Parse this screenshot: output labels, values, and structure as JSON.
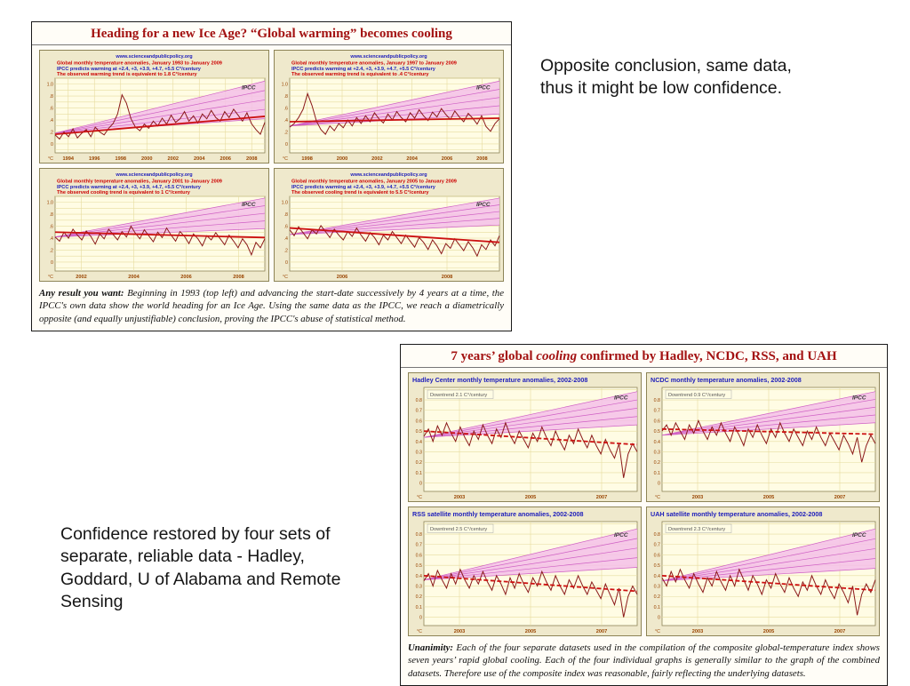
{
  "notes": {
    "right": "Opposite conclusion, same data, thus it might be low confidence.",
    "left": "Confidence restored by four sets of separate, reliable data - Hadley, Goddard, U of Alabama and Remote Sensing"
  },
  "panel1": {
    "title": "Heading for a new Ice Age? “Global warming” becomes cooling",
    "caption_lead": "Any result you want:",
    "caption_body": "Beginning in 1993 (top left) and advancing the start-date successively by 4 years at a time, the IPCC's own data show the world heading for an Ice Age. Using the same data as the IPCC, we reach a diametrically opposite (and equally unjustifiable) conclusion, proving the IPCC's abuse of statistical method."
  },
  "panel2": {
    "title_pre": "7 years’ global ",
    "title_italic": "cooling",
    "title_post": " confirmed by Hadley, NCDC, RSS, and UAH",
    "caption_lead": "Unanimity:",
    "caption_body": "Each of the four separate datasets used in the compilation of the composite global-temperature index shows seven years’ rapid global cooling. Each of the four individual graphs is generally similar to the graph of the combined datasets. Therefore use of the composite index was reasonable, fairly reflecting the underlying datasets."
  },
  "colors": {
    "title_red": "#a31212",
    "header_red": "#cc0000",
    "header_blue": "#2020bb",
    "series": "#8b1a1a",
    "trend": "#cc1111",
    "fan_fill": "#f5bfe9",
    "fan_line": "#cf5fc4",
    "plot_bg": "#fffce4",
    "chart_bg": "#efe9cc",
    "grid": "#e6dc9e",
    "tick_text": "#994400",
    "border": "#8d8457"
  },
  "chart_data": [
    {
      "type": "line",
      "watermark": "www.scienceandpublicpolicy.org",
      "header": [
        {
          "text": "Global monthly temperature anomalies, January 1993 to January 2009",
          "c": "#cc0000"
        },
        {
          "text": "IPCC predicts warming at +2.4, +3, +3.9, +4.7, +5.5 C°/century",
          "c": "#2020bb"
        },
        {
          "text": "The observed warming trend is equivalent to 1.8 C°/century",
          "c": "#cc0000"
        }
      ],
      "ipcc_label": "IPCC",
      "x_ticks": [
        {
          "label": "1994",
          "f": 0.0625
        },
        {
          "label": "1996",
          "f": 0.1875
        },
        {
          "label": "1998",
          "f": 0.3125
        },
        {
          "label": "2000",
          "f": 0.4375
        },
        {
          "label": "2002",
          "f": 0.5625
        },
        {
          "label": "2004",
          "f": 0.6875
        },
        {
          "label": "2006",
          "f": 0.8125
        },
        {
          "label": "2008",
          "f": 0.9375
        }
      ],
      "y_ticks": [
        {
          "l": "1.0",
          "v": 1.0
        },
        {
          "l": ".8",
          "v": 0.8
        },
        {
          "l": ".6",
          "v": 0.6
        },
        {
          "l": ".4",
          "v": 0.4
        },
        {
          "l": ".2",
          "v": 0.2
        },
        {
          "l": "0",
          "v": 0.0
        }
      ],
      "y_unit": "°C",
      "ymin": -0.15,
      "ymax": 1.1,
      "values": [
        0.15,
        0.08,
        0.2,
        0.12,
        0.25,
        0.1,
        0.18,
        0.24,
        0.12,
        0.28,
        0.2,
        0.15,
        0.26,
        0.34,
        0.5,
        0.82,
        0.68,
        0.42,
        0.28,
        0.22,
        0.33,
        0.26,
        0.38,
        0.3,
        0.43,
        0.33,
        0.48,
        0.36,
        0.42,
        0.54,
        0.38,
        0.47,
        0.35,
        0.5,
        0.42,
        0.56,
        0.44,
        0.38,
        0.54,
        0.44,
        0.58,
        0.48,
        0.38,
        0.52,
        0.34,
        0.24,
        0.16,
        0.36
      ],
      "trend": {
        "y0": 0.16,
        "y1": 0.46,
        "dashed": false
      },
      "fan": {
        "apex": 0.18,
        "top": 1.05,
        "bot": 0.42
      }
    },
    {
      "type": "line",
      "watermark": "www.scienceandpublicpolicy.org",
      "header": [
        {
          "text": "Global monthly temperature anomalies, January 1997 to January 2009",
          "c": "#cc0000"
        },
        {
          "text": "IPCC predicts warming at +2.4, +3, +3.9, +4.7, +5.5 C°/century",
          "c": "#2020bb"
        },
        {
          "text": "The observed warming trend is equivalent to .4 C°/century",
          "c": "#cc0000"
        }
      ],
      "ipcc_label": "IPCC",
      "x_ticks": [
        {
          "label": "1998",
          "f": 0.0833
        },
        {
          "label": "2000",
          "f": 0.25
        },
        {
          "label": "2002",
          "f": 0.4167
        },
        {
          "label": "2004",
          "f": 0.5833
        },
        {
          "label": "2006",
          "f": 0.75
        },
        {
          "label": "2008",
          "f": 0.9167
        }
      ],
      "y_ticks": [
        {
          "l": "1.0",
          "v": 1.0
        },
        {
          "l": ".8",
          "v": 0.8
        },
        {
          "l": ".6",
          "v": 0.6
        },
        {
          "l": ".4",
          "v": 0.4
        },
        {
          "l": ".2",
          "v": 0.2
        },
        {
          "l": "0",
          "v": 0.0
        }
      ],
      "y_unit": "°C",
      "ymin": -0.15,
      "ymax": 1.1,
      "values": [
        0.28,
        0.34,
        0.44,
        0.58,
        0.84,
        0.64,
        0.38,
        0.24,
        0.16,
        0.3,
        0.22,
        0.34,
        0.27,
        0.4,
        0.3,
        0.44,
        0.34,
        0.47,
        0.37,
        0.52,
        0.42,
        0.35,
        0.5,
        0.4,
        0.54,
        0.44,
        0.37,
        0.52,
        0.43,
        0.57,
        0.47,
        0.39,
        0.53,
        0.45,
        0.59,
        0.49,
        0.41,
        0.55,
        0.45,
        0.37,
        0.51,
        0.43,
        0.33,
        0.47,
        0.29,
        0.21,
        0.34,
        0.42
      ],
      "trend": {
        "y0": 0.37,
        "y1": 0.43,
        "dashed": false
      },
      "fan": {
        "apex": 0.3,
        "top": 1.05,
        "bot": 0.5
      }
    },
    {
      "type": "line",
      "watermark": "www.scienceandpublicpolicy.org",
      "header": [
        {
          "text": "Global monthly temperature anomalies, January 2001 to January 2009",
          "c": "#cc0000"
        },
        {
          "text": "IPCC predicts warming at +2.4, +3, +3.9, +4.7, +5.5 C°/century",
          "c": "#2020bb"
        },
        {
          "text": "The observed cooling trend is equivalent to 1 C°/century",
          "c": "#cc0000"
        }
      ],
      "ipcc_label": "IPCC",
      "x_ticks": [
        {
          "label": "2002",
          "f": 0.125
        },
        {
          "label": "2004",
          "f": 0.375
        },
        {
          "label": "2006",
          "f": 0.625
        },
        {
          "label": "2008",
          "f": 0.875
        }
      ],
      "y_ticks": [
        {
          "l": "1.0",
          "v": 1.0
        },
        {
          "l": ".8",
          "v": 0.8
        },
        {
          "l": ".6",
          "v": 0.6
        },
        {
          "l": ".4",
          "v": 0.4
        },
        {
          "l": ".2",
          "v": 0.2
        },
        {
          "l": "0",
          "v": 0.0
        }
      ],
      "y_unit": "°C",
      "ymin": -0.15,
      "ymax": 1.1,
      "values": [
        0.42,
        0.35,
        0.5,
        0.4,
        0.55,
        0.45,
        0.37,
        0.52,
        0.43,
        0.3,
        0.47,
        0.39,
        0.55,
        0.46,
        0.37,
        0.51,
        0.42,
        0.6,
        0.48,
        0.39,
        0.54,
        0.44,
        0.34,
        0.5,
        0.41,
        0.57,
        0.45,
        0.35,
        0.51,
        0.43,
        0.31,
        0.47,
        0.39,
        0.27,
        0.44,
        0.37,
        0.49,
        0.39,
        0.29,
        0.45,
        0.35,
        0.24,
        0.39,
        0.29,
        0.12,
        0.33,
        0.24,
        0.39
      ],
      "trend": {
        "y0": 0.5,
        "y1": 0.41,
        "dashed": false
      },
      "fan": {
        "apex": 0.42,
        "top": 1.07,
        "bot": 0.56
      }
    },
    {
      "type": "line",
      "watermark": "www.scienceandpublicpolicy.org",
      "header": [
        {
          "text": "Global monthly temperature anomalies, January 2005 to January 2009",
          "c": "#cc0000"
        },
        {
          "text": "IPCC predicts warming at +2.4, +3, +3.9, +4.7, +5.5 C°/century",
          "c": "#2020bb"
        },
        {
          "text": "The observed cooling trend is equivalent to 5.5 C°/century",
          "c": "#cc0000"
        }
      ],
      "ipcc_label": "IPCC",
      "x_ticks": [
        {
          "label": "2006",
          "f": 0.25
        },
        {
          "label": "2008",
          "f": 0.75
        }
      ],
      "y_ticks": [
        {
          "l": "1.0",
          "v": 1.0
        },
        {
          "l": ".8",
          "v": 0.8
        },
        {
          "l": ".6",
          "v": 0.6
        },
        {
          "l": ".4",
          "v": 0.4
        },
        {
          "l": ".2",
          "v": 0.2
        },
        {
          "l": "0",
          "v": 0.0
        }
      ],
      "y_unit": "°C",
      "ymin": -0.15,
      "ymax": 1.1,
      "values": [
        0.54,
        0.44,
        0.59,
        0.49,
        0.39,
        0.54,
        0.47,
        0.61,
        0.51,
        0.41,
        0.55,
        0.45,
        0.37,
        0.51,
        0.43,
        0.57,
        0.45,
        0.35,
        0.49,
        0.41,
        0.29,
        0.45,
        0.37,
        0.51,
        0.41,
        0.31,
        0.45,
        0.35,
        0.25,
        0.41,
        0.33,
        0.21,
        0.37,
        0.27,
        0.14,
        0.31,
        0.23,
        0.39,
        0.29,
        0.19,
        0.34,
        0.24,
        0.1,
        0.29,
        0.21,
        0.37,
        0.27,
        0.44
      ],
      "trend": {
        "y0": 0.57,
        "y1": 0.33,
        "dashed": false
      },
      "fan": {
        "apex": 0.46,
        "top": 1.07,
        "bot": 0.62
      }
    },
    {
      "type": "line",
      "title": "Hadley Center monthly temperature anomalies, 2002-2008",
      "note": "Downtrend 2.1 C°/century",
      "ipcc_label": "IPCC",
      "x_ticks": [
        {
          "label": "2003",
          "f": 0.1667
        },
        {
          "label": "2005",
          "f": 0.5
        },
        {
          "label": "2007",
          "f": 0.8333
        }
      ],
      "y_ticks": [
        {
          "l": "0.8",
          "v": 0.8
        },
        {
          "l": "0.7",
          "v": 0.7
        },
        {
          "l": "0.6",
          "v": 0.6
        },
        {
          "l": "0.5",
          "v": 0.5
        },
        {
          "l": "0.4",
          "v": 0.4
        },
        {
          "l": "0.3",
          "v": 0.3
        },
        {
          "l": "0.2",
          "v": 0.2
        },
        {
          "l": "0.1",
          "v": 0.1
        },
        {
          "l": "0",
          "v": 0.0
        }
      ],
      "y_unit": "°C",
      "ymin": -0.08,
      "ymax": 0.92,
      "values": [
        0.45,
        0.52,
        0.4,
        0.55,
        0.46,
        0.58,
        0.48,
        0.4,
        0.54,
        0.44,
        0.36,
        0.5,
        0.42,
        0.56,
        0.46,
        0.38,
        0.52,
        0.44,
        0.58,
        0.46,
        0.38,
        0.5,
        0.42,
        0.34,
        0.48,
        0.4,
        0.54,
        0.44,
        0.36,
        0.5,
        0.4,
        0.32,
        0.46,
        0.38,
        0.52,
        0.42,
        0.34,
        0.46,
        0.36,
        0.28,
        0.42,
        0.32,
        0.24,
        0.38,
        0.05,
        0.28,
        0.38,
        0.3
      ],
      "trend": {
        "y0": 0.5,
        "y1": 0.37,
        "dashed": true
      },
      "fan": {
        "apex": 0.44,
        "top": 0.88,
        "bot": 0.56
      }
    },
    {
      "type": "line",
      "title": "NCDC monthly temperature anomalies, 2002-2008",
      "note": "Downtrend 0.9 C°/century",
      "ipcc_label": "IPCC",
      "x_ticks": [
        {
          "label": "2003",
          "f": 0.1667
        },
        {
          "label": "2005",
          "f": 0.5
        },
        {
          "label": "2007",
          "f": 0.8333
        }
      ],
      "y_ticks": [
        {
          "l": "0.8",
          "v": 0.8
        },
        {
          "l": "0.7",
          "v": 0.7
        },
        {
          "l": "0.6",
          "v": 0.6
        },
        {
          "l": "0.5",
          "v": 0.5
        },
        {
          "l": "0.4",
          "v": 0.4
        },
        {
          "l": "0.3",
          "v": 0.3
        },
        {
          "l": "0.2",
          "v": 0.2
        },
        {
          "l": "0.1",
          "v": 0.1
        },
        {
          "l": "0",
          "v": 0.0
        }
      ],
      "y_unit": "°C",
      "ymin": -0.08,
      "ymax": 0.92,
      "values": [
        0.5,
        0.56,
        0.46,
        0.58,
        0.5,
        0.42,
        0.56,
        0.48,
        0.6,
        0.5,
        0.42,
        0.54,
        0.46,
        0.58,
        0.48,
        0.4,
        0.54,
        0.46,
        0.36,
        0.52,
        0.44,
        0.56,
        0.46,
        0.38,
        0.52,
        0.44,
        0.58,
        0.48,
        0.4,
        0.52,
        0.44,
        0.36,
        0.5,
        0.42,
        0.54,
        0.44,
        0.36,
        0.48,
        0.4,
        0.32,
        0.46,
        0.38,
        0.28,
        0.44,
        0.2,
        0.36,
        0.46,
        0.38
      ],
      "trend": {
        "y0": 0.52,
        "y1": 0.47,
        "dashed": true
      },
      "fan": {
        "apex": 0.46,
        "top": 0.88,
        "bot": 0.58
      }
    },
    {
      "type": "line",
      "title": "RSS satellite monthly temperature anomalies, 2002-2008",
      "note": "Downtrend 2.5 C°/century",
      "ipcc_label": "IPCC",
      "x_ticks": [
        {
          "label": "2003",
          "f": 0.1667
        },
        {
          "label": "2005",
          "f": 0.5
        },
        {
          "label": "2007",
          "f": 0.8333
        }
      ],
      "y_ticks": [
        {
          "l": "0.8",
          "v": 0.8
        },
        {
          "l": "0.7",
          "v": 0.7
        },
        {
          "l": "0.6",
          "v": 0.6
        },
        {
          "l": "0.5",
          "v": 0.5
        },
        {
          "l": "0.4",
          "v": 0.4
        },
        {
          "l": "0.3",
          "v": 0.3
        },
        {
          "l": "0.2",
          "v": 0.2
        },
        {
          "l": "0.1",
          "v": 0.1
        },
        {
          "l": "0",
          "v": 0.0
        }
      ],
      "y_unit": "°C",
      "ymin": -0.08,
      "ymax": 0.92,
      "values": [
        0.35,
        0.42,
        0.3,
        0.45,
        0.36,
        0.28,
        0.42,
        0.32,
        0.46,
        0.36,
        0.28,
        0.4,
        0.32,
        0.44,
        0.34,
        0.26,
        0.4,
        0.32,
        0.22,
        0.38,
        0.28,
        0.42,
        0.32,
        0.24,
        0.38,
        0.3,
        0.44,
        0.34,
        0.26,
        0.4,
        0.3,
        0.22,
        0.36,
        0.28,
        0.4,
        0.3,
        0.22,
        0.34,
        0.26,
        0.18,
        0.32,
        0.22,
        0.12,
        0.28,
        0.0,
        0.2,
        0.3,
        0.22
      ],
      "trend": {
        "y0": 0.4,
        "y1": 0.25,
        "dashed": true
      },
      "fan": {
        "apex": 0.36,
        "top": 0.85,
        "bot": 0.48
      }
    },
    {
      "type": "line",
      "title": "UAH satellite monthly temperature anomalies, 2002-2008",
      "note": "Downtrend 2.3 C°/century",
      "ipcc_label": "IPCC",
      "x_ticks": [
        {
          "label": "2003",
          "f": 0.1667
        },
        {
          "label": "2005",
          "f": 0.5
        },
        {
          "label": "2007",
          "f": 0.8333
        }
      ],
      "y_ticks": [
        {
          "l": "0.8",
          "v": 0.8
        },
        {
          "l": "0.7",
          "v": 0.7
        },
        {
          "l": "0.6",
          "v": 0.6
        },
        {
          "l": "0.5",
          "v": 0.5
        },
        {
          "l": "0.4",
          "v": 0.4
        },
        {
          "l": "0.3",
          "v": 0.3
        },
        {
          "l": "0.2",
          "v": 0.2
        },
        {
          "l": "0.1",
          "v": 0.1
        },
        {
          "l": "0",
          "v": 0.0
        }
      ],
      "y_unit": "°C",
      "ymin": -0.08,
      "ymax": 0.92,
      "values": [
        0.38,
        0.3,
        0.44,
        0.34,
        0.46,
        0.36,
        0.28,
        0.42,
        0.32,
        0.24,
        0.38,
        0.3,
        0.44,
        0.34,
        0.26,
        0.4,
        0.3,
        0.46,
        0.36,
        0.26,
        0.4,
        0.32,
        0.22,
        0.36,
        0.28,
        0.42,
        0.32,
        0.24,
        0.38,
        0.28,
        0.2,
        0.34,
        0.26,
        0.4,
        0.3,
        0.22,
        0.36,
        0.26,
        0.18,
        0.32,
        0.24,
        0.14,
        0.3,
        0.02,
        0.22,
        0.32,
        0.24,
        0.36
      ],
      "trend": {
        "y0": 0.4,
        "y1": 0.26,
        "dashed": true
      },
      "fan": {
        "apex": 0.35,
        "top": 0.85,
        "bot": 0.47
      }
    }
  ]
}
